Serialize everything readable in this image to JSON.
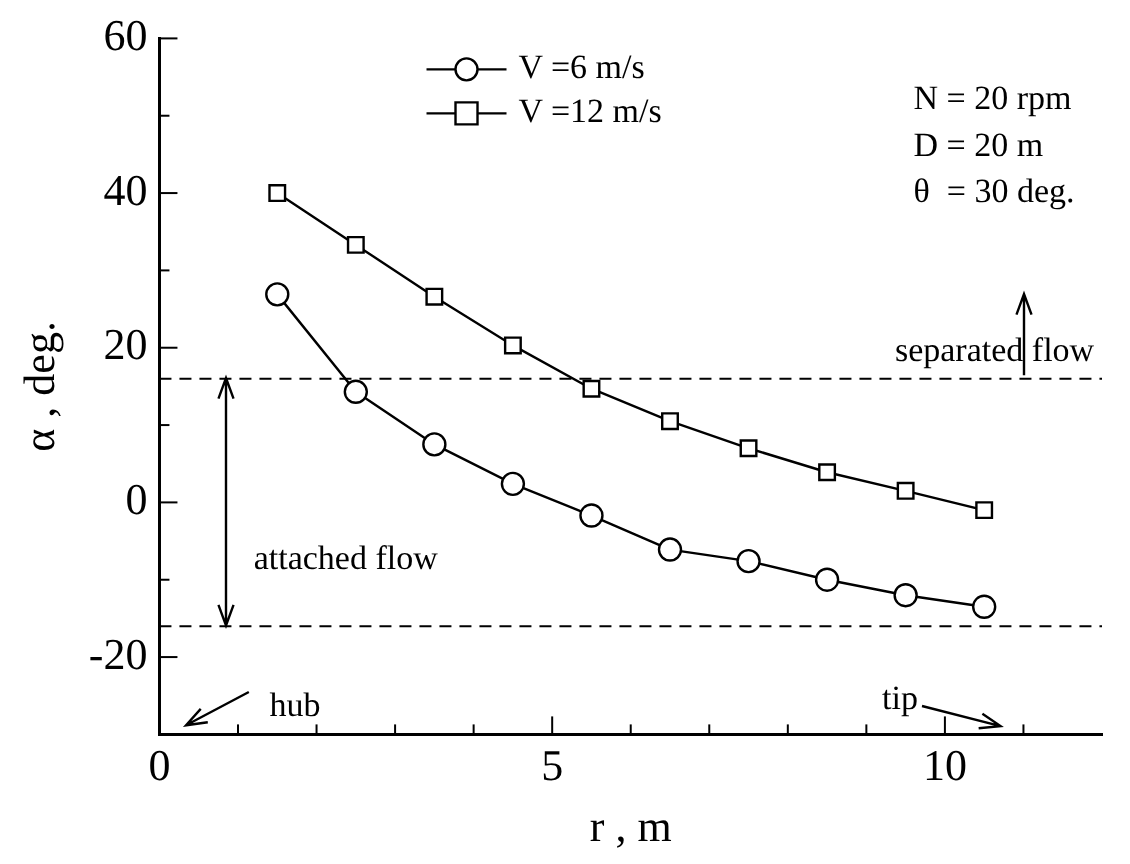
{
  "chart_data": {
    "type": "line",
    "xlabel": "r , m",
    "ylabel": "α , deg.",
    "x": [
      1.5,
      2.5,
      3.5,
      4.5,
      5.5,
      6.5,
      7.5,
      8.5,
      9.5,
      10.5
    ],
    "series": [
      {
        "name": "V =6 m/s",
        "color": "#000000",
        "marker": "circle",
        "values": [
          26.9,
          14.3,
          7.5,
          2.4,
          -1.7,
          -6.1,
          -7.6,
          -10.0,
          -12.0,
          -13.5
        ]
      },
      {
        "name": "V =12 m/s",
        "color": "#000000",
        "marker": "square",
        "values": [
          40.0,
          33.3,
          26.6,
          20.3,
          14.7,
          10.5,
          7.0,
          3.9,
          1.5,
          -1.0
        ]
      }
    ],
    "xlim": [
      0,
      12
    ],
    "ylim": [
      -30,
      60
    ],
    "xticks": [
      0,
      {
        "value": 1,
        "label": null
      },
      {
        "value": 2,
        "label": null
      },
      {
        "value": 3,
        "label": null
      },
      {
        "value": 4,
        "label": null
      },
      5,
      {
        "value": 6,
        "label": null
      },
      {
        "value": 7,
        "label": null
      },
      {
        "value": 8,
        "label": null
      },
      {
        "value": 9,
        "label": null
      },
      10,
      {
        "value": 11,
        "label": null
      }
    ],
    "yticks": [
      {
        "value": -30,
        "label": null
      },
      -20,
      {
        "value": -10,
        "label": null
      },
      0,
      {
        "value": 10,
        "label": null
      },
      20,
      {
        "value": 30,
        "label": null
      },
      40,
      {
        "value": 50,
        "label": null
      },
      60
    ],
    "ref_lines": [
      {
        "axis": "y",
        "value": 16,
        "line_style": "dashed",
        "color": "#000000"
      },
      {
        "axis": "y",
        "value": -16,
        "line_style": "dashed",
        "color": "#000000"
      }
    ],
    "annotations": [
      "N = 20 rpm",
      "D = 20 m",
      "θ  = 30 deg.",
      "separated flow",
      "attached flow",
      "hub",
      "tip"
    ],
    "grid": false,
    "legend": "top",
    "line_style": "solid"
  }
}
